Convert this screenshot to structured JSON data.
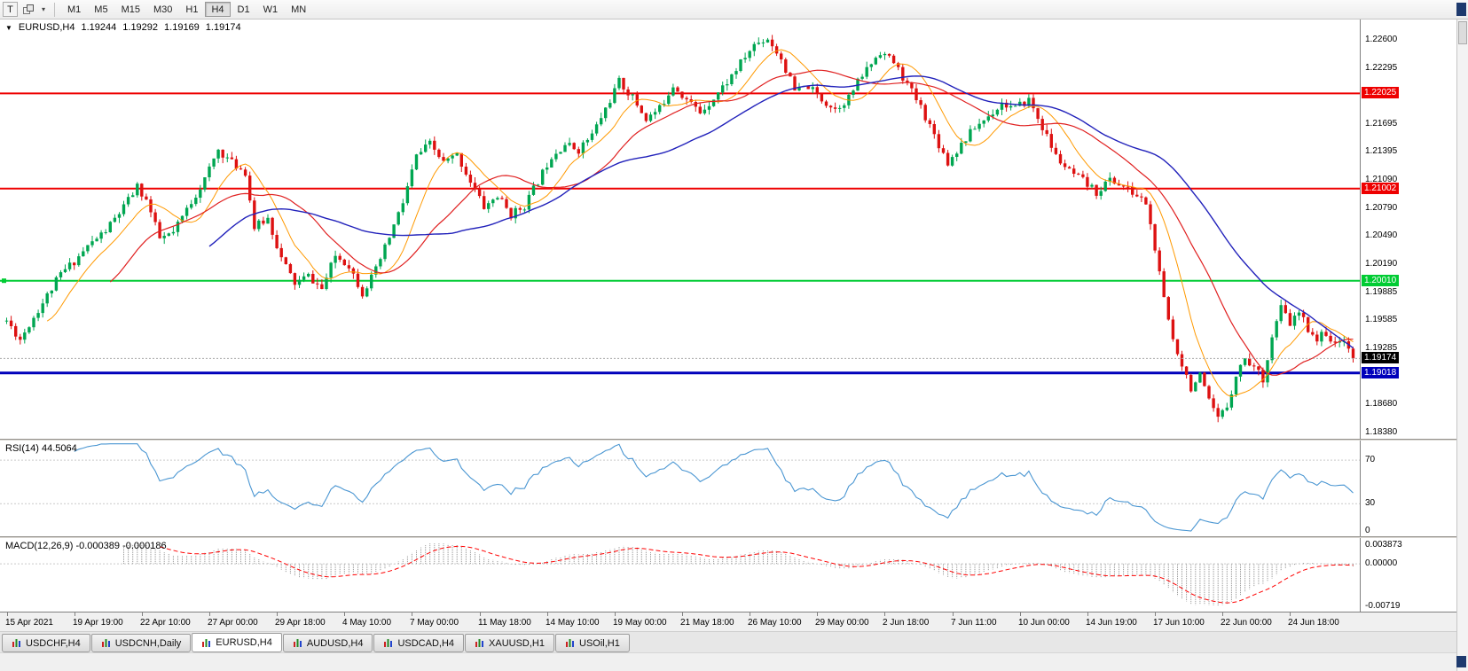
{
  "icons": {
    "symbol_dropdown": "▼",
    "toolbar_caret": "▾"
  },
  "toolbar": {
    "t_label": "T",
    "timeframes": [
      "M1",
      "M5",
      "M15",
      "M30",
      "H1",
      "H4",
      "D1",
      "W1",
      "MN"
    ],
    "active_timeframe": "H4"
  },
  "chart": {
    "symbol_label": "EURUSD,H4",
    "ohlc": [
      "1.19244",
      "1.19292",
      "1.19169",
      "1.19174"
    ],
    "price_axis": [
      "1.22600",
      "1.22295",
      "1.21995",
      "1.21695",
      "1.21395",
      "1.21090",
      "1.20790",
      "1.20490",
      "1.20190",
      "1.19885",
      "1.19585",
      "1.19285",
      "1.18980",
      "1.18680",
      "1.18380"
    ],
    "price_range": {
      "min": 1.1831,
      "max": 1.2282
    },
    "levels": [
      {
        "price": 1.22025,
        "label": "1.22025",
        "color": "#ee0000",
        "width": 2,
        "handle": false
      },
      {
        "price": 1.21002,
        "label": "1.21002",
        "color": "#ee0000",
        "width": 2,
        "handle": false
      },
      {
        "price": 1.2001,
        "label": "1.20010",
        "color": "#00cc33",
        "width": 2,
        "handle": true
      },
      {
        "price": 1.19018,
        "label": "1.19018",
        "color": "#0000bb",
        "width": 3,
        "handle": false
      }
    ],
    "current_price": {
      "value": 1.19174,
      "label": "1.19174",
      "badge_bg": "#000000"
    }
  },
  "rsi": {
    "label": "RSI(14) 44.5064",
    "period": 14,
    "value": 44.5064,
    "range": [
      0,
      88
    ],
    "levels": [
      70,
      30
    ],
    "axis_labels": [
      "70",
      "30",
      "0"
    ],
    "color": "#4a96d2"
  },
  "macd": {
    "label": "MACD(12,26,9) -0.000389 -0.000186",
    "macd_value": -0.000389,
    "signal_value": -0.000186,
    "range": [
      -0.00719,
      0.003873
    ],
    "axis_labels": [
      "0.003873",
      "0.00000",
      "-0.00719"
    ],
    "histogram_color": "#909090",
    "signal_color": "#ff0000"
  },
  "time_axis": [
    "15 Apr 2021",
    "19 Apr 19:00",
    "22 Apr 10:00",
    "27 Apr 00:00",
    "29 Apr 18:00",
    "4 May 10:00",
    "7 May 00:00",
    "11 May 18:00",
    "14 May 10:00",
    "19 May 00:00",
    "21 May 18:00",
    "26 May 10:00",
    "29 May 00:00",
    "2 Jun 18:00",
    "7 Jun 11:00",
    "10 Jun 00:00",
    "14 Jun 19:00",
    "17 Jun 10:00",
    "22 Jun 00:00",
    "24 Jun 18:00"
  ],
  "tabs": [
    {
      "label": "USDCHF,H4",
      "active": false
    },
    {
      "label": "USDCNH,Daily",
      "active": false
    },
    {
      "label": "EURUSD,H4",
      "active": true
    },
    {
      "label": "AUDUSD,H4",
      "active": false
    },
    {
      "label": "USDCAD,H4",
      "active": false
    },
    {
      "label": "XAUUSD,H1",
      "active": false
    },
    {
      "label": "USOil,H1",
      "active": false
    }
  ],
  "chart_data": {
    "type": "candlestick",
    "symbol": "EURUSD",
    "timeframe": "H4",
    "candle_count": 300,
    "seed": 11,
    "volatility": 0.0009,
    "wick": 0.0006,
    "last_close": 1.19174,
    "colors": {
      "bull": "#00a651",
      "bear": "#dd1111"
    },
    "ma": {
      "fast": {
        "period": 10,
        "color": "#ff9900"
      },
      "mid": {
        "period": 24,
        "color": "#e02020"
      },
      "slow": {
        "period": 46,
        "color": "#2222bb"
      }
    },
    "anchors": [
      [
        0,
        1.1958
      ],
      [
        3,
        1.1938
      ],
      [
        6,
        1.1962
      ],
      [
        9,
        1.1985
      ],
      [
        12,
        1.2008
      ],
      [
        15,
        1.2022
      ],
      [
        18,
        1.2038
      ],
      [
        22,
        1.2055
      ],
      [
        26,
        1.208
      ],
      [
        29,
        1.2102
      ],
      [
        31,
        1.2088
      ],
      [
        34,
        1.2046
      ],
      [
        37,
        1.2052
      ],
      [
        40,
        1.2078
      ],
      [
        44,
        1.211
      ],
      [
        47,
        1.2142
      ],
      [
        50,
        1.2128
      ],
      [
        53,
        1.2118
      ],
      [
        55,
        1.2058
      ],
      [
        58,
        1.2068
      ],
      [
        61,
        1.2025
      ],
      [
        64,
        1.1998
      ],
      [
        67,
        1.2006
      ],
      [
        70,
        1.1992
      ],
      [
        73,
        1.2028
      ],
      [
        76,
        1.2018
      ],
      [
        79,
        1.1988
      ],
      [
        82,
        1.2012
      ],
      [
        85,
        1.2048
      ],
      [
        88,
        1.2085
      ],
      [
        91,
        1.2135
      ],
      [
        94,
        1.2148
      ],
      [
        97,
        1.2128
      ],
      [
        100,
        1.2136
      ],
      [
        103,
        1.2108
      ],
      [
        106,
        1.208
      ],
      [
        109,
        1.2092
      ],
      [
        112,
        1.2072
      ],
      [
        115,
        1.2082
      ],
      [
        118,
        1.2108
      ],
      [
        121,
        1.2136
      ],
      [
        124,
        1.2148
      ],
      [
        127,
        1.2142
      ],
      [
        130,
        1.2158
      ],
      [
        133,
        1.2186
      ],
      [
        136,
        1.2215
      ],
      [
        139,
        1.2198
      ],
      [
        142,
        1.2175
      ],
      [
        145,
        1.2186
      ],
      [
        148,
        1.2212
      ],
      [
        151,
        1.2196
      ],
      [
        154,
        1.2182
      ],
      [
        157,
        1.2198
      ],
      [
        160,
        1.2215
      ],
      [
        163,
        1.2235
      ],
      [
        166,
        1.2255
      ],
      [
        169,
        1.2262
      ],
      [
        172,
        1.224
      ],
      [
        175,
        1.2205
      ],
      [
        178,
        1.221
      ],
      [
        181,
        1.2196
      ],
      [
        184,
        1.2186
      ],
      [
        187,
        1.2198
      ],
      [
        190,
        1.2222
      ],
      [
        194,
        1.2248
      ],
      [
        197,
        1.2236
      ],
      [
        200,
        1.2212
      ],
      [
        203,
        1.2188
      ],
      [
        206,
        1.2158
      ],
      [
        209,
        1.2128
      ],
      [
        212,
        1.2148
      ],
      [
        215,
        1.2166
      ],
      [
        218,
        1.2178
      ],
      [
        221,
        1.2192
      ],
      [
        224,
        1.2186
      ],
      [
        227,
        1.2196
      ],
      [
        230,
        1.2166
      ],
      [
        233,
        1.2135
      ],
      [
        236,
        1.2118
      ],
      [
        239,
        1.2108
      ],
      [
        242,
        1.2096
      ],
      [
        245,
        1.211
      ],
      [
        248,
        1.2102
      ],
      [
        251,
        1.2092
      ],
      [
        253,
        1.2085
      ],
      [
        255,
        1.2035
      ],
      [
        257,
        1.198
      ],
      [
        259,
        1.1938
      ],
      [
        261,
        1.1912
      ],
      [
        263,
        1.1886
      ],
      [
        265,
        1.1898
      ],
      [
        267,
        1.187
      ],
      [
        269,
        1.1852
      ],
      [
        271,
        1.1866
      ],
      [
        273,
        1.19
      ],
      [
        275,
        1.1918
      ],
      [
        277,
        1.1908
      ],
      [
        279,
        1.1896
      ],
      [
        281,
        1.194
      ],
      [
        283,
        1.1972
      ],
      [
        285,
        1.1955
      ],
      [
        287,
        1.1966
      ],
      [
        289,
        1.195
      ],
      [
        291,
        1.1938
      ],
      [
        293,
        1.1946
      ],
      [
        295,
        1.193
      ],
      [
        297,
        1.194
      ],
      [
        299,
        1.19174
      ]
    ]
  }
}
